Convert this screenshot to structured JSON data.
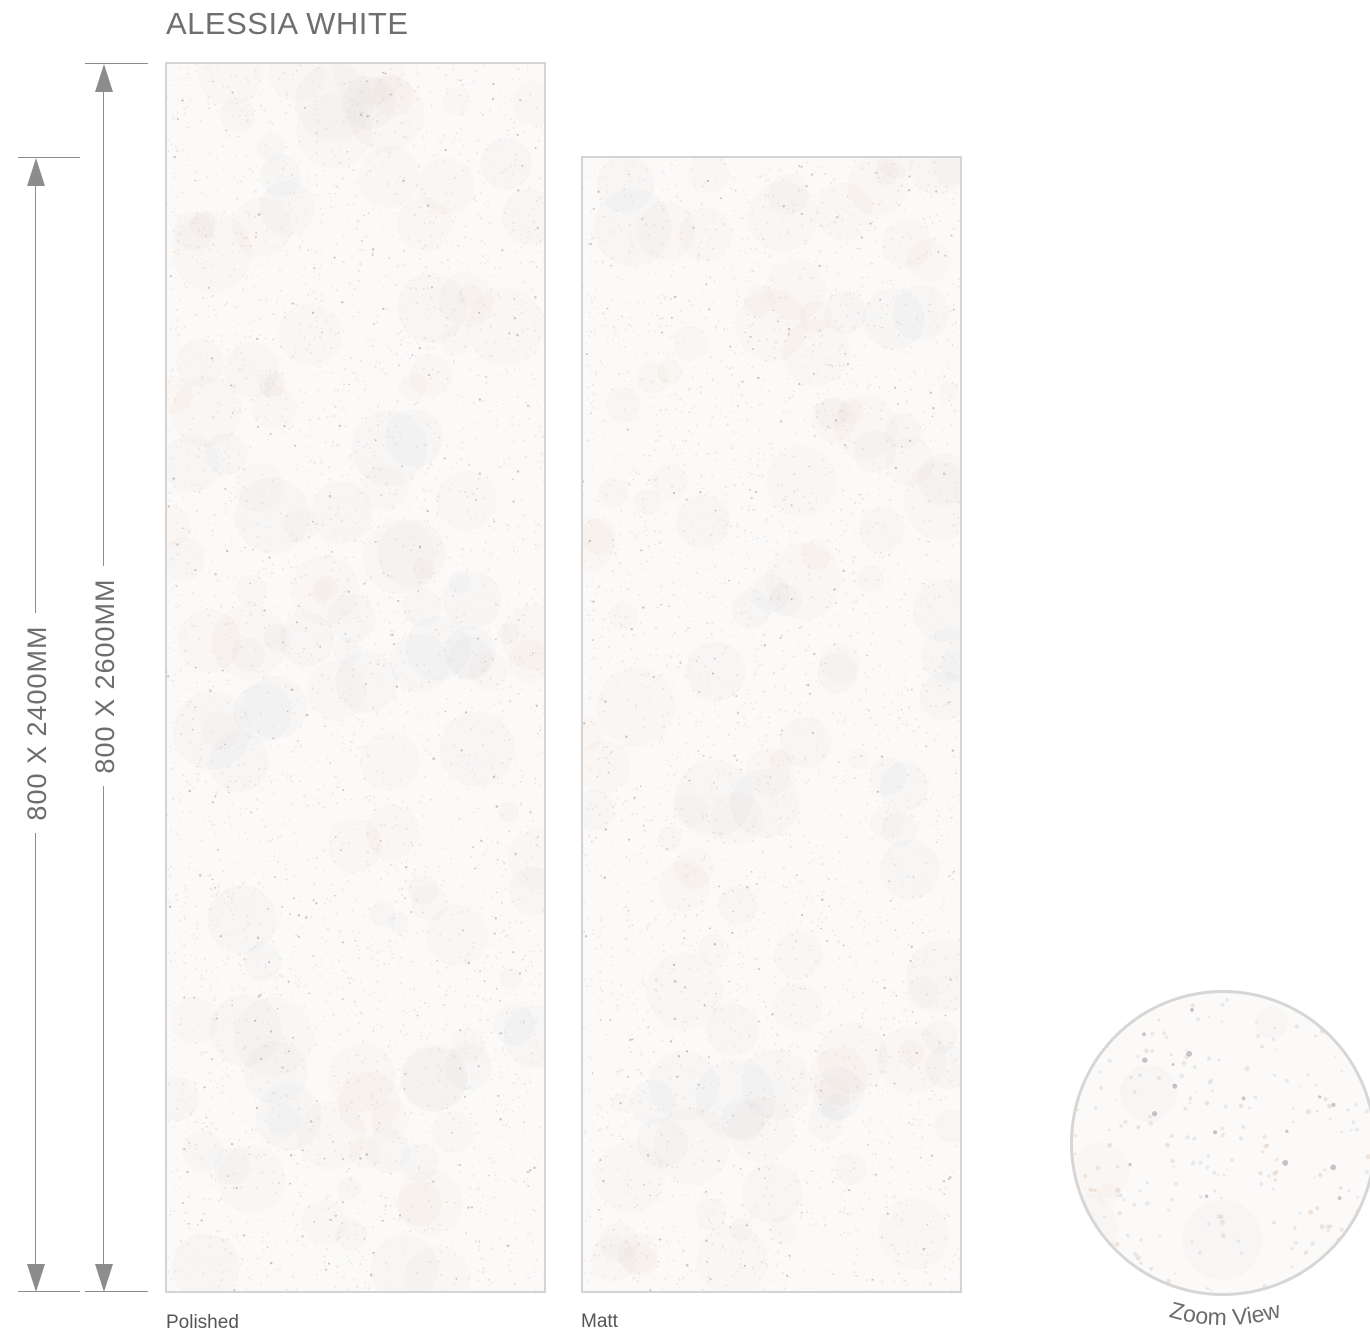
{
  "product": {
    "name": "ALESSIA WHITE"
  },
  "dimensions": {
    "short_label": "800 X 2400MM",
    "tall_label": "800 X 2600MM"
  },
  "finishes": [
    {
      "label": "Polished"
    },
    {
      "label": "Matt"
    }
  ],
  "zoom": {
    "label": "Zoom View"
  },
  "colors": {
    "slab_base": "#fbfaf8",
    "slab_border": "#d4d4d4",
    "speckle_dark": "#8a7f86",
    "speckle_warm": "#d9b9a6",
    "speckle_cool": "#b9bfd0",
    "dimension_line": "#8c8c8c",
    "text": "#6f6f6f"
  }
}
